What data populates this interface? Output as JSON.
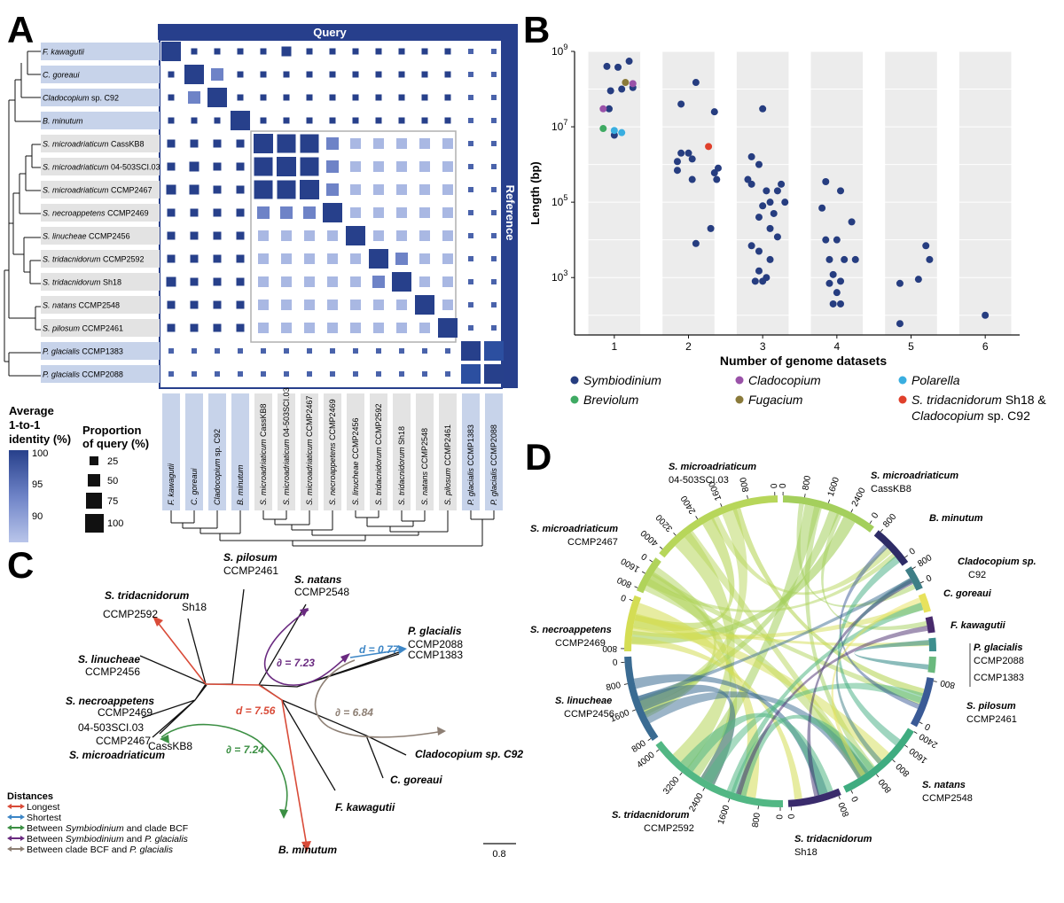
{
  "panelA": {
    "letter": "A",
    "query_label": "Query",
    "reference_label": "Reference",
    "species": [
      {
        "g": "F. kawagutii",
        "s": "",
        "shade": "blue"
      },
      {
        "g": "C. goreaui",
        "s": "",
        "shade": "blue"
      },
      {
        "g": "Cladocopium",
        "s": " sp. C92",
        "shade": "blue"
      },
      {
        "g": "B. minutum",
        "s": "",
        "shade": "blue"
      },
      {
        "g": "S. microadriaticum",
        "s": " CassKB8",
        "shade": "grey"
      },
      {
        "g": "S. microadriaticum",
        "s": " 04-503SCI.03",
        "shade": "grey"
      },
      {
        "g": "S. microadriaticum",
        "s": " CCMP2467",
        "shade": "grey"
      },
      {
        "g": "S. necroappetens",
        "s": " CCMP2469",
        "shade": "grey"
      },
      {
        "g": "S. linucheae",
        "s": " CCMP2456",
        "shade": "grey"
      },
      {
        "g": "S. tridacnidorum",
        "s": " CCMP2592",
        "shade": "grey"
      },
      {
        "g": "S. tridacnidorum",
        "s": " Sh18",
        "shade": "grey"
      },
      {
        "g": "S. natans",
        "s": " CCMP2548",
        "shade": "grey"
      },
      {
        "g": "S. pilosum",
        "s": " CCMP2461",
        "shade": "grey"
      },
      {
        "g": "P. glacialis",
        "s": " CCMP1383",
        "shade": "blue"
      },
      {
        "g": "P. glacialis",
        "s": " CCMP2088",
        "shade": "blue"
      }
    ],
    "color_legend": {
      "title_lines": [
        "Average",
        "1-to-1",
        "identity (%)"
      ],
      "ticks": [
        "100",
        "95",
        "90"
      ]
    },
    "size_legend": {
      "title_lines": [
        "Proportion",
        "of query (%)"
      ],
      "ticks": [
        "25",
        "50",
        "75",
        "100"
      ]
    },
    "colors": {
      "high": "#27408b",
      "mid": "#6e83c7",
      "low": "#a9b8e3",
      "blue_band": "#c7d3ea",
      "grey_band": "#e3e3e3",
      "frame": "#273f8c"
    }
  },
  "panelB": {
    "letter": "B",
    "chart_data": {
      "type": "scatter",
      "xlabel": "Number of genome datasets",
      "ylabel": "Length (bp)",
      "x_ticks": [
        "1",
        "2",
        "3",
        "4",
        "5",
        "6"
      ],
      "y_ticks": [
        {
          "base": "10",
          "exp": "3",
          "value": 1000
        },
        {
          "base": "10",
          "exp": "5",
          "value": 100000
        },
        {
          "base": "10",
          "exp": "7",
          "value": 10000000
        },
        {
          "base": "10",
          "exp": "9",
          "value": 1000000000
        }
      ],
      "y_scale": "log",
      "ylim": [
        30,
        1000000000
      ],
      "series": [
        {
          "name": "Symbiodinium",
          "color": "#263d80",
          "points": [
            [
              0.9,
              400000000
            ],
            [
              1.05,
              380000000
            ],
            [
              1.2,
              550000000
            ],
            [
              1.1,
              100000000
            ],
            [
              0.95,
              90000000
            ],
            [
              1.25,
              110000000
            ],
            [
              0.93,
              30000000
            ],
            [
              1.0,
              6000000
            ],
            [
              1.9,
              40000000
            ],
            [
              2.1,
              150000000
            ],
            [
              2.35,
              25000000
            ],
            [
              1.85,
              1200000
            ],
            [
              1.9,
              2000000
            ],
            [
              2.0,
              2000000
            ],
            [
              2.05,
              1400000
            ],
            [
              1.85,
              700000
            ],
            [
              2.05,
              400000
            ],
            [
              2.35,
              600000
            ],
            [
              2.4,
              800000
            ],
            [
              2.38,
              400000
            ],
            [
              2.3,
              20000
            ],
            [
              2.1,
              8000
            ],
            [
              3.0,
              30000000
            ],
            [
              2.85,
              1600000
            ],
            [
              2.95,
              1000000
            ],
            [
              2.8,
              400000
            ],
            [
              2.85,
              300000
            ],
            [
              3.25,
              300000
            ],
            [
              3.2,
              200000
            ],
            [
              3.05,
              200000
            ],
            [
              3.3,
              100000
            ],
            [
              3.1,
              100000
            ],
            [
              3.0,
              80000
            ],
            [
              3.15,
              50000
            ],
            [
              2.95,
              40000
            ],
            [
              3.1,
              20000
            ],
            [
              3.2,
              12000
            ],
            [
              2.85,
              7000
            ],
            [
              2.95,
              5000
            ],
            [
              3.1,
              3000
            ],
            [
              2.95,
              1500
            ],
            [
              3.05,
              1000
            ],
            [
              2.9,
              800
            ],
            [
              3.0,
              800
            ],
            [
              3.85,
              350000
            ],
            [
              3.8,
              70000
            ],
            [
              4.05,
              200000
            ],
            [
              4.2,
              30000
            ],
            [
              3.85,
              10000
            ],
            [
              4.0,
              10000
            ],
            [
              3.9,
              3000
            ],
            [
              4.1,
              3000
            ],
            [
              4.25,
              3000
            ],
            [
              3.95,
              1200
            ],
            [
              4.05,
              800
            ],
            [
              3.9,
              700
            ],
            [
              4.0,
              400
            ],
            [
              3.95,
              200
            ],
            [
              4.05,
              200
            ],
            [
              4.85,
              700
            ],
            [
              4.85,
              60
            ],
            [
              5.1,
              900
            ],
            [
              5.2,
              7000
            ],
            [
              5.25,
              3000
            ],
            [
              6.0,
              100
            ]
          ]
        },
        {
          "name": "Breviolum",
          "color": "#3faa63",
          "points": [
            [
              0.85,
              9000000
            ]
          ]
        },
        {
          "name": "Cladocopium",
          "color": "#9a52a8",
          "points": [
            [
              0.85,
              30000000
            ],
            [
              1.25,
              140000000
            ]
          ]
        },
        {
          "name": "Fugacium",
          "color": "#8a7a3a",
          "points": [
            [
              1.15,
              150000000
            ]
          ]
        },
        {
          "name": "Polarella",
          "color": "#39aee0",
          "points": [
            [
              1.0,
              8000000
            ],
            [
              1.1,
              7000000
            ]
          ]
        },
        {
          "name": "S. tridacnidorum Sh18 & Cladocopium sp. C92",
          "color": "#e0402b",
          "points": [
            [
              2.27,
              3000000
            ]
          ]
        }
      ]
    },
    "legend": [
      {
        "it": "Symbiodinium",
        "rest": "",
        "it2": "",
        "color": "#263d80"
      },
      {
        "it": "Cladocopium",
        "rest": "",
        "it2": "",
        "color": "#9a52a8"
      },
      {
        "it": "Polarella",
        "rest": "",
        "it2": "",
        "color": "#39aee0"
      },
      {
        "it": "Breviolum",
        "rest": "",
        "it2": "",
        "color": "#3faa63"
      },
      {
        "it": "Fugacium",
        "rest": "",
        "it2": "",
        "color": "#8a7a3a"
      },
      {
        "it": "S. tridacnidorum",
        "rest": " Sh18 &",
        "it2": "Cladocopium",
        "rest2": " sp. C92",
        "color": "#e0402b"
      }
    ]
  },
  "panelC": {
    "letter": "C",
    "tips": [
      {
        "bi": "S. tridacnidorum",
        "sub": "CCMP2592"
      },
      {
        "bi": "",
        "sub": "Sh18"
      },
      {
        "bi": "S. pilosum",
        "sub": "CCMP2461"
      },
      {
        "bi": "S. natans",
        "sub": "CCMP2548"
      },
      {
        "bi": "P. glacialis",
        "sub": "CCMP2088"
      },
      {
        "bi": "",
        "sub": "CCMP1383"
      },
      {
        "bi": "S. linucheae",
        "sub": "CCMP2456"
      },
      {
        "bi": "S. necroappetens",
        "sub": "CCMP2469"
      },
      {
        "bi": "",
        "sub": "04-503SCI.03"
      },
      {
        "bi": "",
        "sub": "CCMP2467"
      },
      {
        "bi": "S. microadriaticum",
        "sub": ""
      },
      {
        "bi": "",
        "sub": "CassKB8"
      },
      {
        "bi": "Cladocopium sp. C92",
        "sub": ""
      },
      {
        "bi": "C. goreaui",
        "sub": ""
      },
      {
        "bi": "F. kawagutii",
        "sub": ""
      },
      {
        "bi": "B. minutum",
        "sub": ""
      }
    ],
    "distances": {
      "d_short": "d = 0.77",
      "d_long": "d = 7.56",
      "p1": "∂ = 7.23",
      "p2": "∂ = 6.84",
      "p3": "∂ = 7.24"
    },
    "legend_title": "Distances",
    "legend": [
      {
        "pre": "Longest",
        "it": "",
        "mid": "",
        "it2": "",
        "post": "",
        "color": "#d94b38"
      },
      {
        "pre": "Shortest",
        "it": "",
        "mid": "",
        "it2": "",
        "post": "",
        "color": "#3d86c6"
      },
      {
        "pre": "Between ",
        "it": "Symbiodinium",
        "mid": " and clade BCF",
        "it2": "",
        "post": "",
        "color": "#3b8f43"
      },
      {
        "pre": "Between ",
        "it": "Symbiodinium",
        "mid": " and ",
        "it2": "P. glacialis",
        "post": "",
        "color": "#6a2a80"
      },
      {
        "pre": "Between clade BCF and ",
        "it": "P. glacialis",
        "mid": "",
        "it2": "",
        "post": "",
        "color": "#8d7f74"
      }
    ],
    "scale_bar": "0.8"
  },
  "panelD": {
    "letter": "D",
    "labels": [
      {
        "bi": "S. microadriaticum",
        "sub": "04-503SCI.03"
      },
      {
        "bi": "S. microadriaticum",
        "sub": "CassKB8"
      },
      {
        "bi": "B. minutum",
        "sub": ""
      },
      {
        "bi": "Cladocopium sp.",
        "sub": "C92"
      },
      {
        "bi": "C. goreaui",
        "sub": ""
      },
      {
        "bi": "F. kawagutii",
        "sub": ""
      },
      {
        "bi": "P. glacialis",
        "sub": "CCMP2088"
      },
      {
        "bi": "",
        "sub": "CCMP1383"
      },
      {
        "bi": "S. pilosum",
        "sub": "CCMP2461"
      },
      {
        "bi": "S. natans",
        "sub": "CCMP2548"
      },
      {
        "bi": "S. tridacnidorum",
        "sub": "Sh18"
      },
      {
        "bi": "S. tridacnidorum",
        "sub": "CCMP2592"
      },
      {
        "bi": "S. linucheae",
        "sub": "CCMP2456"
      },
      {
        "bi": "S. necroappetens",
        "sub": "CCMP2469"
      },
      {
        "bi": "S. microadriaticum",
        "sub": "CCMP2467"
      }
    ],
    "ticks": [
      "0",
      "800",
      "1600",
      "2400",
      "3200",
      "4000"
    ],
    "colors": [
      "#b7d65a",
      "#a4cf5c",
      "#2e2c66",
      "#3e7e86",
      "#e8e25c",
      "#482a6c",
      "#3e8f8e",
      "#6ab97e",
      "#3a5a96",
      "#3fac80",
      "#3a2b6c",
      "#52b784",
      "#3a6b92",
      "#d4dd54",
      "#b0d35a"
    ]
  }
}
